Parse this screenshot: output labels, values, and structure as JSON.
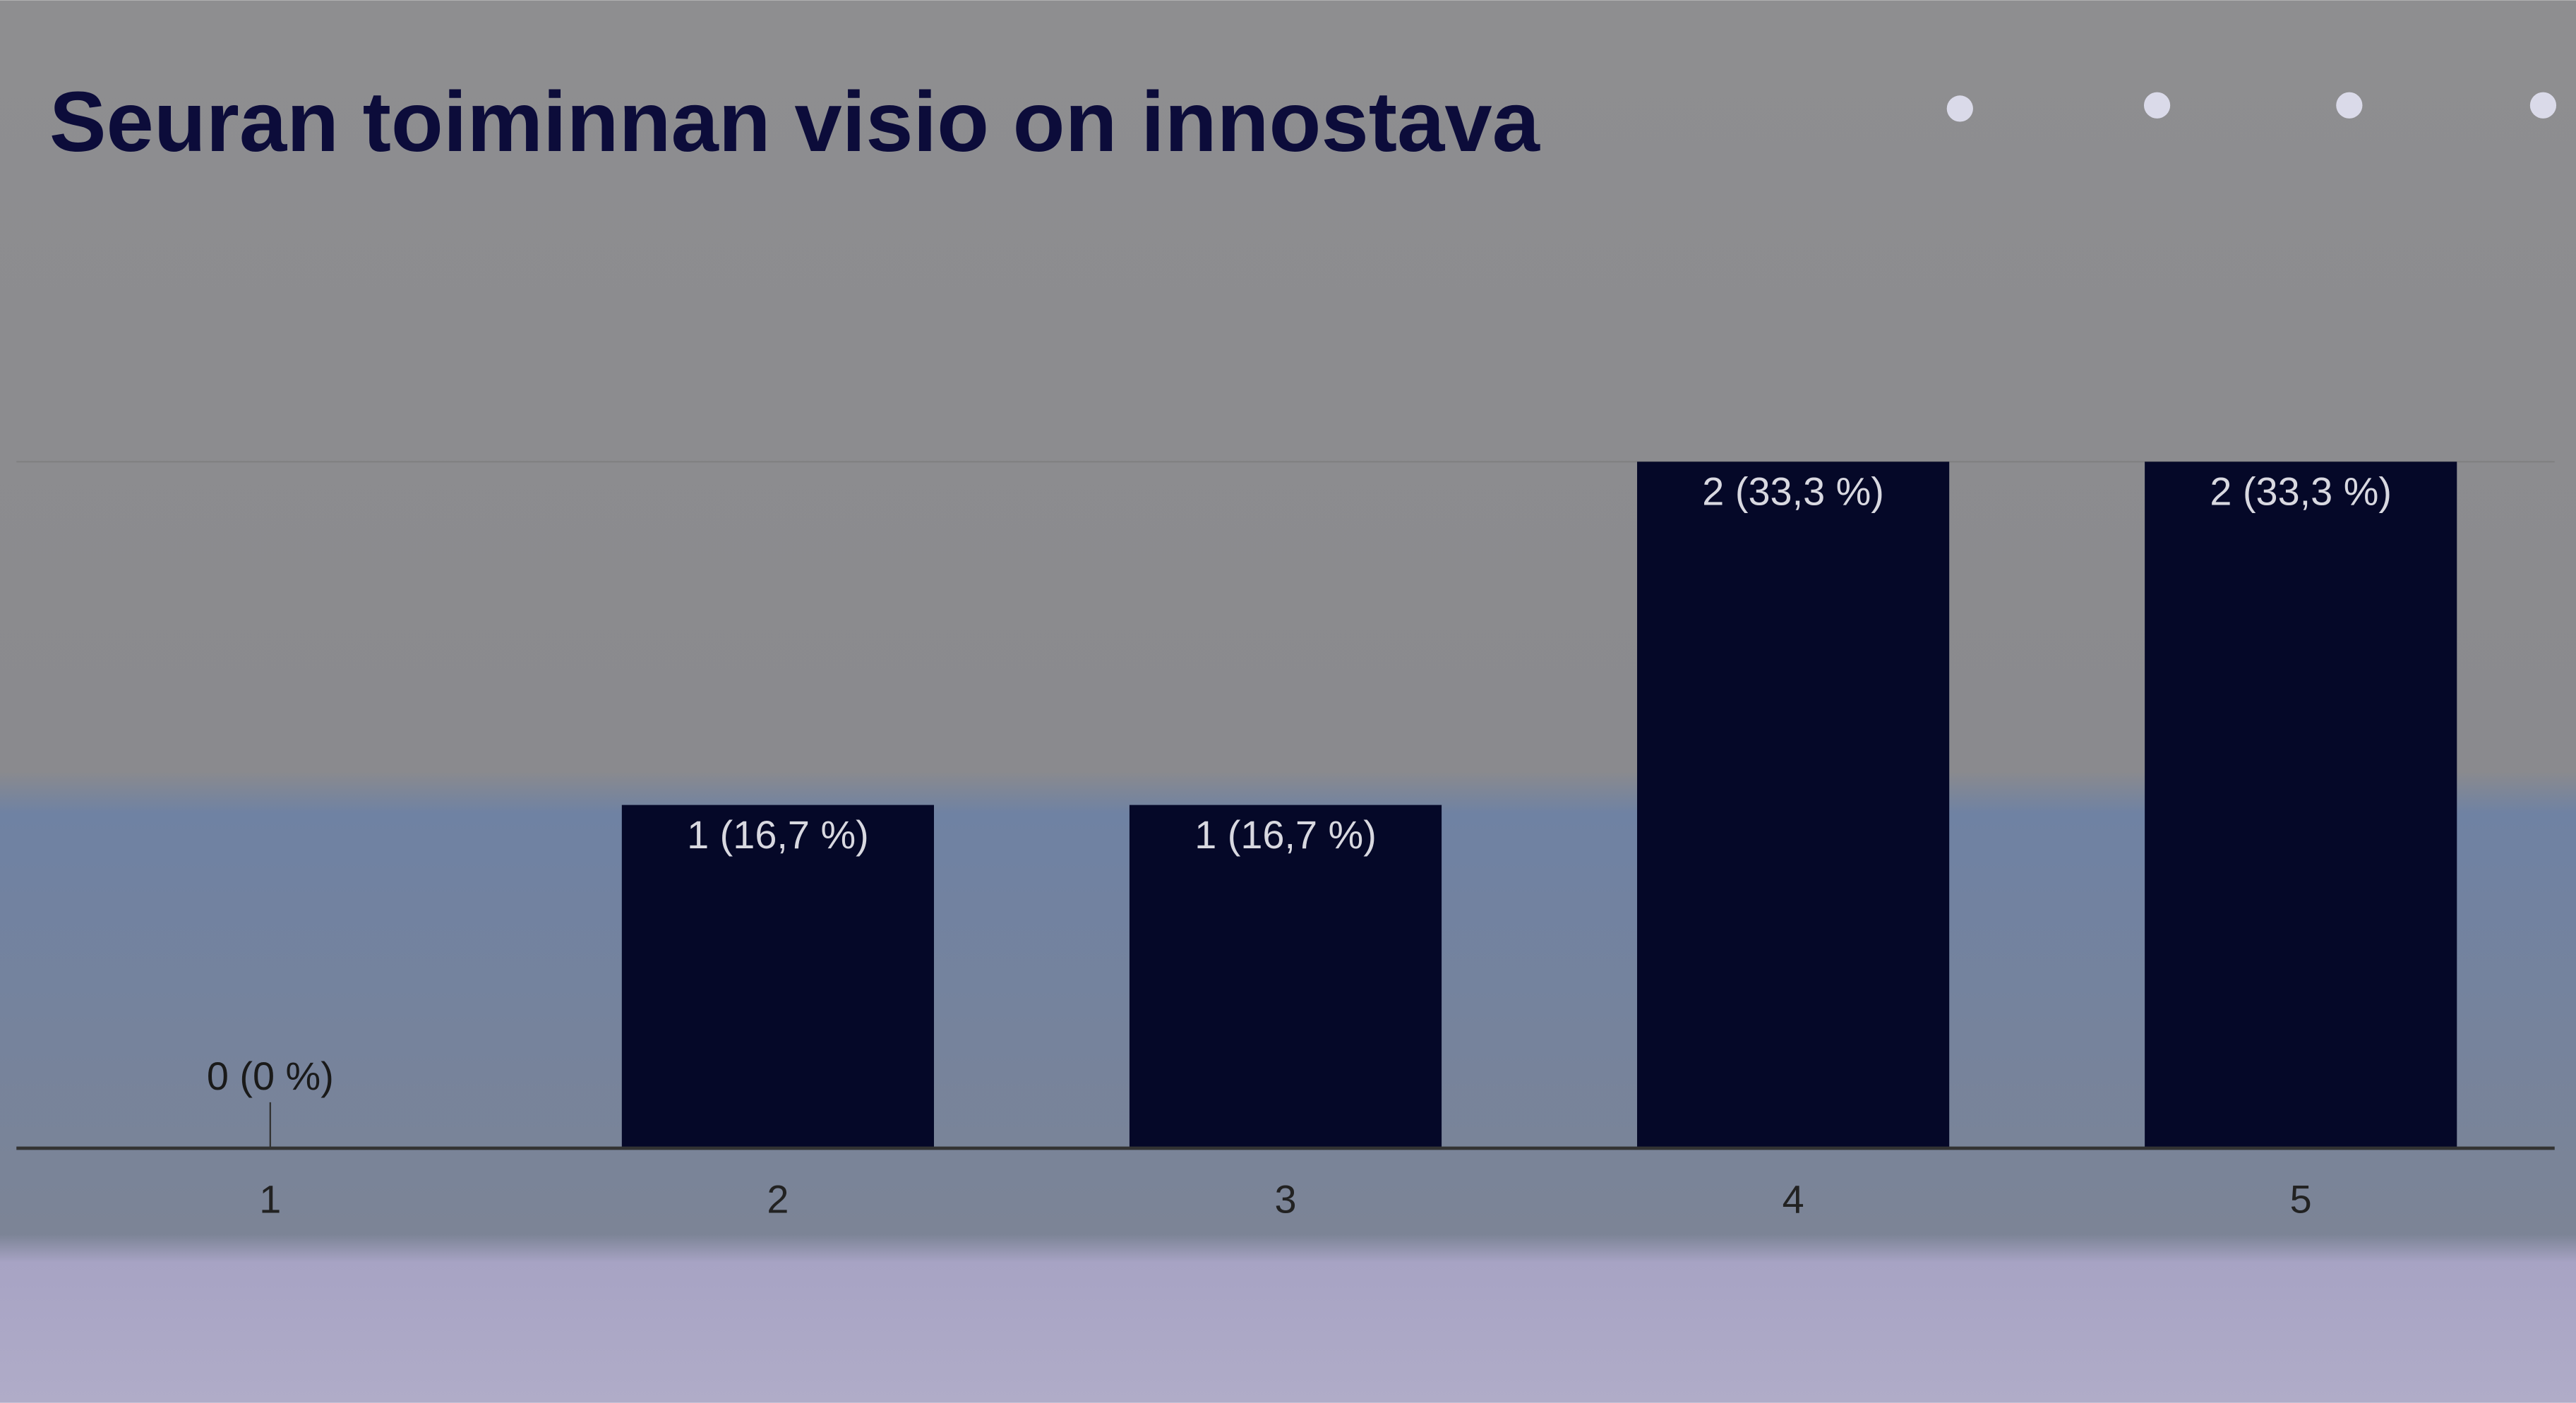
{
  "chart_data": {
    "type": "bar",
    "title": "Seuran toiminnan visio on innostava",
    "categories": [
      "1",
      "2",
      "3",
      "4",
      "5"
    ],
    "values": [
      0,
      1,
      1,
      2,
      2
    ],
    "value_labels": [
      "0 (0 %)",
      "1 (16,7 %)",
      "1 (16,7 %)",
      "2 (33,3 %)",
      "2 (33,3 %)"
    ],
    "color": "#050828",
    "ylim": [
      0,
      2
    ]
  }
}
